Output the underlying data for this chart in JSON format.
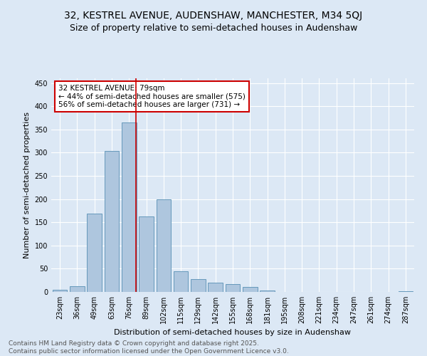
{
  "title": "32, KESTREL AVENUE, AUDENSHAW, MANCHESTER, M34 5QJ",
  "subtitle": "Size of property relative to semi-detached houses in Audenshaw",
  "xlabel": "Distribution of semi-detached houses by size in Audenshaw",
  "ylabel": "Number of semi-detached properties",
  "categories": [
    "23sqm",
    "36sqm",
    "49sqm",
    "63sqm",
    "76sqm",
    "89sqm",
    "102sqm",
    "115sqm",
    "129sqm",
    "142sqm",
    "155sqm",
    "168sqm",
    "181sqm",
    "195sqm",
    "208sqm",
    "221sqm",
    "234sqm",
    "247sqm",
    "261sqm",
    "274sqm",
    "287sqm"
  ],
  "values": [
    5,
    12,
    168,
    303,
    365,
    163,
    200,
    45,
    27,
    20,
    17,
    10,
    3,
    0,
    0,
    0,
    0,
    0,
    0,
    0,
    2
  ],
  "bar_color": "#aec6de",
  "bar_edge_color": "#6699bb",
  "highlight_color": "#cc0000",
  "annotation_text": "32 KESTREL AVENUE: 79sqm\n← 44% of semi-detached houses are smaller (575)\n56% of semi-detached houses are larger (731) →",
  "annotation_box_color": "#ffffff",
  "annotation_box_edge": "#cc0000",
  "ylim": [
    0,
    460
  ],
  "yticks": [
    0,
    50,
    100,
    150,
    200,
    250,
    300,
    350,
    400,
    450
  ],
  "footer1": "Contains HM Land Registry data © Crown copyright and database right 2025.",
  "footer2": "Contains public sector information licensed under the Open Government Licence v3.0.",
  "bg_color": "#dce8f5",
  "plot_bg_color": "#dce8f5",
  "title_fontsize": 10,
  "subtitle_fontsize": 9,
  "label_fontsize": 8,
  "tick_fontsize": 7,
  "annotation_fontsize": 7.5,
  "footer_fontsize": 6.5
}
